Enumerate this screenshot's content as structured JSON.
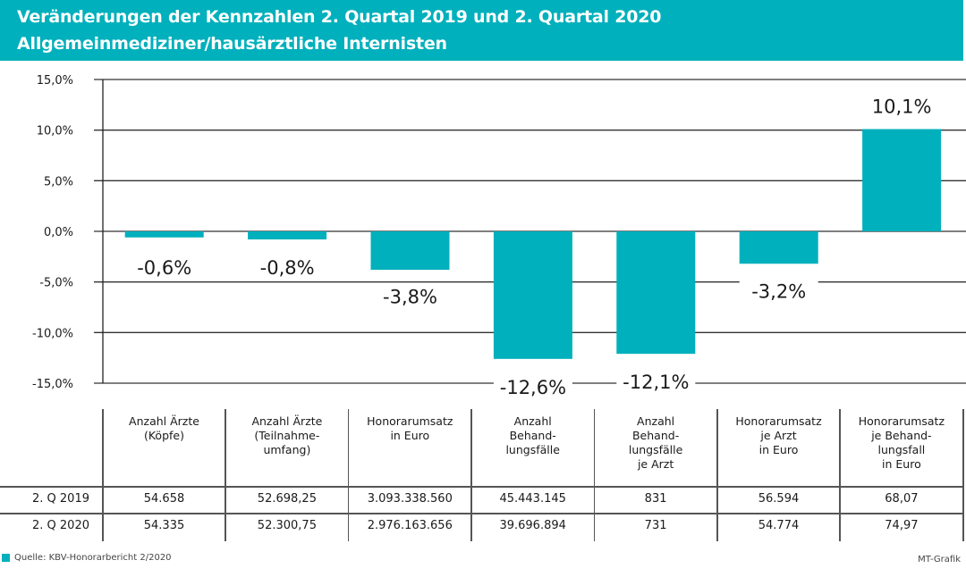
{
  "header": {
    "title": "Veränderungen der Kennzahlen 2. Quartal 2019 und 2. Quartal 2020",
    "subtitle": "Allgemeinmediziner/hausärztliche Internisten"
  },
  "colors": {
    "accent": "#00b0bc",
    "grid": "#333333",
    "text": "#1a1a1a"
  },
  "chart_data": {
    "type": "bar",
    "title": "Veränderungen der Kennzahlen 2. Quartal 2019 und 2. Quartal 2020",
    "subtitle": "Allgemeinmediziner/hausärztliche Internisten",
    "xlabel": "",
    "ylabel": "",
    "ylim": [
      -15,
      15
    ],
    "yticks": [
      15,
      10,
      5,
      0,
      -5,
      -10,
      -15
    ],
    "ytick_labels": [
      "15,0%",
      "10,0%",
      "5,0%",
      "0,0%",
      "-5,0%",
      "-10,0%",
      "-15,0%"
    ],
    "grid": true,
    "legend": "none",
    "categories": [
      "Anzahl Ärzte (Köpfe)",
      "Anzahl Ärzte (Teilnahmeumfang)",
      "Honorarumsatz in Euro",
      "Anzahl Behandlungsfälle",
      "Anzahl Behandlungsfälle je Arzt",
      "Honorarumsatz je Arzt in Euro",
      "Honorarumsatz je Behandlungsfall in Euro"
    ],
    "values": [
      -0.6,
      -0.8,
      -3.8,
      -12.6,
      -12.1,
      -3.2,
      10.1
    ],
    "data_labels": [
      "-0,6%",
      "-0,8%",
      "-3,8%",
      "-12,6%",
      "-12,1%",
      "-3,2%",
      "10,1%"
    ]
  },
  "table": {
    "headers": [
      "Anzahl Ärzte\n(Köpfe)",
      "Anzahl Ärzte\n(Teilnahme-\numfang)",
      "Honorarumsatz\nin Euro",
      "Anzahl\nBehand-\nlungsfälle",
      "Anzahl\nBehand-\nlungsfälle\nje Arzt",
      "Honorarumsatz\nje Arzt\nin Euro",
      "Honorarumsatz\nje Behand-\nlungsfall\nin Euro"
    ],
    "rows": [
      {
        "label": "2. Q 2019",
        "values": [
          "54.658",
          "52.698,25",
          "3.093.338.560",
          "45.443.145",
          "831",
          "56.594",
          "68,07"
        ]
      },
      {
        "label": "2. Q 2020",
        "values": [
          "54.335",
          "52.300,75",
          "2.976.163.656",
          "39.696.894",
          "731",
          "54.774",
          "74,97"
        ]
      }
    ]
  },
  "footer": {
    "source": "Quelle: KBV-Honorarbericht 2/2020",
    "credit": "MT-Grafik"
  }
}
